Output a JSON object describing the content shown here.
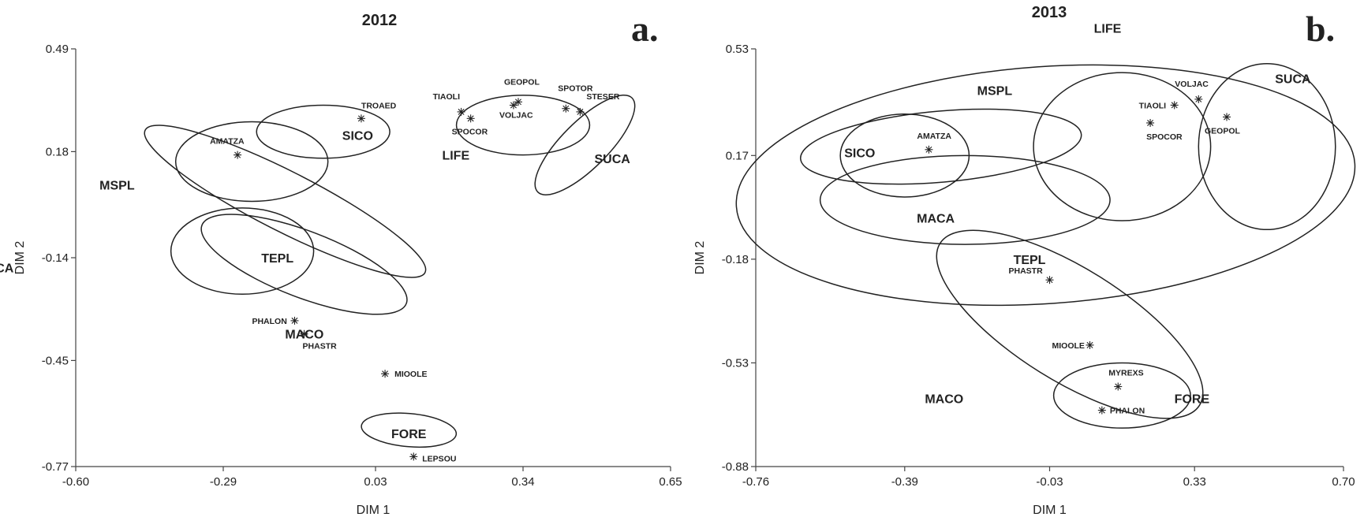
{
  "chart_data": [
    {
      "type": "scatter",
      "panel_letter": "a.",
      "title": "2012",
      "xlabel": "DIM 1",
      "ylabel": "DIM 2",
      "xlim": [
        -0.6,
        0.65
      ],
      "ylim": [
        -0.77,
        0.49
      ],
      "xticks": [
        "-0.60",
        "-0.29",
        "0.03",
        "0.34",
        "0.65"
      ],
      "yticks": [
        "0.49",
        "0.18",
        "-0.14",
        "-0.45",
        "-0.77"
      ],
      "points": [
        {
          "label": "TROAED",
          "x": 0.0,
          "y": 0.28
        },
        {
          "label": "AMATZA",
          "x": -0.26,
          "y": 0.17
        },
        {
          "label": "TIAOLI",
          "x": 0.21,
          "y": 0.3
        },
        {
          "label": "SPOCOR",
          "x": 0.23,
          "y": 0.28
        },
        {
          "label": "GEOPOL",
          "x": 0.33,
          "y": 0.33
        },
        {
          "label": "VOLJAC",
          "x": 0.32,
          "y": 0.32
        },
        {
          "label": "SPOTOR",
          "x": 0.43,
          "y": 0.31
        },
        {
          "label": "STESER",
          "x": 0.46,
          "y": 0.3
        },
        {
          "label": "PHALON",
          "x": -0.14,
          "y": -0.33
        },
        {
          "label": "PHASTR",
          "x": -0.12,
          "y": -0.37
        },
        {
          "label": "MIOOLE",
          "x": 0.05,
          "y": -0.49
        },
        {
          "label": "LEPSOU",
          "x": 0.11,
          "y": -0.74
        }
      ],
      "groups": [
        {
          "label": "SICO",
          "cx": -0.08,
          "cy": 0.24,
          "rx": 0.14,
          "ry": 0.08,
          "rotation": 0
        },
        {
          "label": "MSPL",
          "cx": -0.23,
          "cy": 0.15,
          "rx": 0.16,
          "ry": 0.12,
          "rotation": 0
        },
        {
          "label": "TEPL",
          "cx": -0.16,
          "cy": 0.03,
          "rx": 0.33,
          "ry": 0.09,
          "rotation": 27
        },
        {
          "label": "MACA",
          "cx": -0.25,
          "cy": -0.12,
          "rx": 0.15,
          "ry": 0.13,
          "rotation": 0
        },
        {
          "label": "MACO",
          "cx": -0.12,
          "cy": -0.16,
          "rx": 0.23,
          "ry": 0.1,
          "rotation": 21
        },
        {
          "label": "LIFE",
          "cx": 0.34,
          "cy": 0.26,
          "rx": 0.14,
          "ry": 0.09,
          "rotation": 0
        },
        {
          "label": "SUCA",
          "cx": 0.47,
          "cy": 0.2,
          "rx": 0.14,
          "ry": 0.07,
          "rotation": -45
        },
        {
          "label": "FORE",
          "cx": 0.1,
          "cy": -0.66,
          "rx": 0.1,
          "ry": 0.05,
          "rotation": 5
        }
      ]
    },
    {
      "type": "scatter",
      "panel_letter": "b.",
      "title": "2013",
      "xlabel": "DIM 1",
      "ylabel": "DIM 2",
      "xlim": [
        -0.76,
        0.7
      ],
      "ylim": [
        -0.88,
        0.53
      ],
      "xticks": [
        "-0.76",
        "-0.39",
        "-0.03",
        "0.33",
        "0.70"
      ],
      "yticks": [
        "0.53",
        "0.17",
        "-0.18",
        "-0.53",
        "-0.88"
      ],
      "points": [
        {
          "label": "AMATZA",
          "x": -0.33,
          "y": 0.19
        },
        {
          "label": "TIAOLI",
          "x": 0.28,
          "y": 0.34
        },
        {
          "label": "VOLJAC",
          "x": 0.34,
          "y": 0.36
        },
        {
          "label": "SPOCOR",
          "x": 0.22,
          "y": 0.28
        },
        {
          "label": "GEOPOL",
          "x": 0.41,
          "y": 0.3
        },
        {
          "label": "PHASTR",
          "x": -0.03,
          "y": -0.25
        },
        {
          "label": "MIOOLE",
          "x": 0.07,
          "y": -0.47
        },
        {
          "label": "MYREXS",
          "x": 0.14,
          "y": -0.61
        },
        {
          "label": "PHALON",
          "x": 0.1,
          "y": -0.69
        }
      ],
      "groups": [
        {
          "label": "SICO",
          "cx": -0.39,
          "cy": 0.17,
          "rx": 0.16,
          "ry": 0.14,
          "rotation": 0
        },
        {
          "label": "MSPL",
          "cx": -0.3,
          "cy": 0.2,
          "rx": 0.35,
          "ry": 0.12,
          "rotation": -5
        },
        {
          "label": "MACA",
          "cx": -0.24,
          "cy": 0.02,
          "rx": 0.36,
          "ry": 0.15,
          "rotation": 0
        },
        {
          "label": "LIFE",
          "cx": 0.15,
          "cy": 0.2,
          "rx": 0.22,
          "ry": 0.25,
          "rotation": 0
        },
        {
          "label": "SUCA",
          "cx": 0.51,
          "cy": 0.2,
          "rx": 0.17,
          "ry": 0.28,
          "rotation": 0
        },
        {
          "label": "TEPL",
          "cx": -0.04,
          "cy": 0.07,
          "rx": 0.77,
          "ry": 0.4,
          "rotation": -4
        },
        {
          "label": "MACO",
          "cx": 0.02,
          "cy": -0.4,
          "rx": 0.38,
          "ry": 0.19,
          "rotation": 32
        },
        {
          "label": "FORE",
          "cx": 0.15,
          "cy": -0.64,
          "rx": 0.17,
          "ry": 0.11,
          "rotation": 0
        }
      ]
    }
  ]
}
